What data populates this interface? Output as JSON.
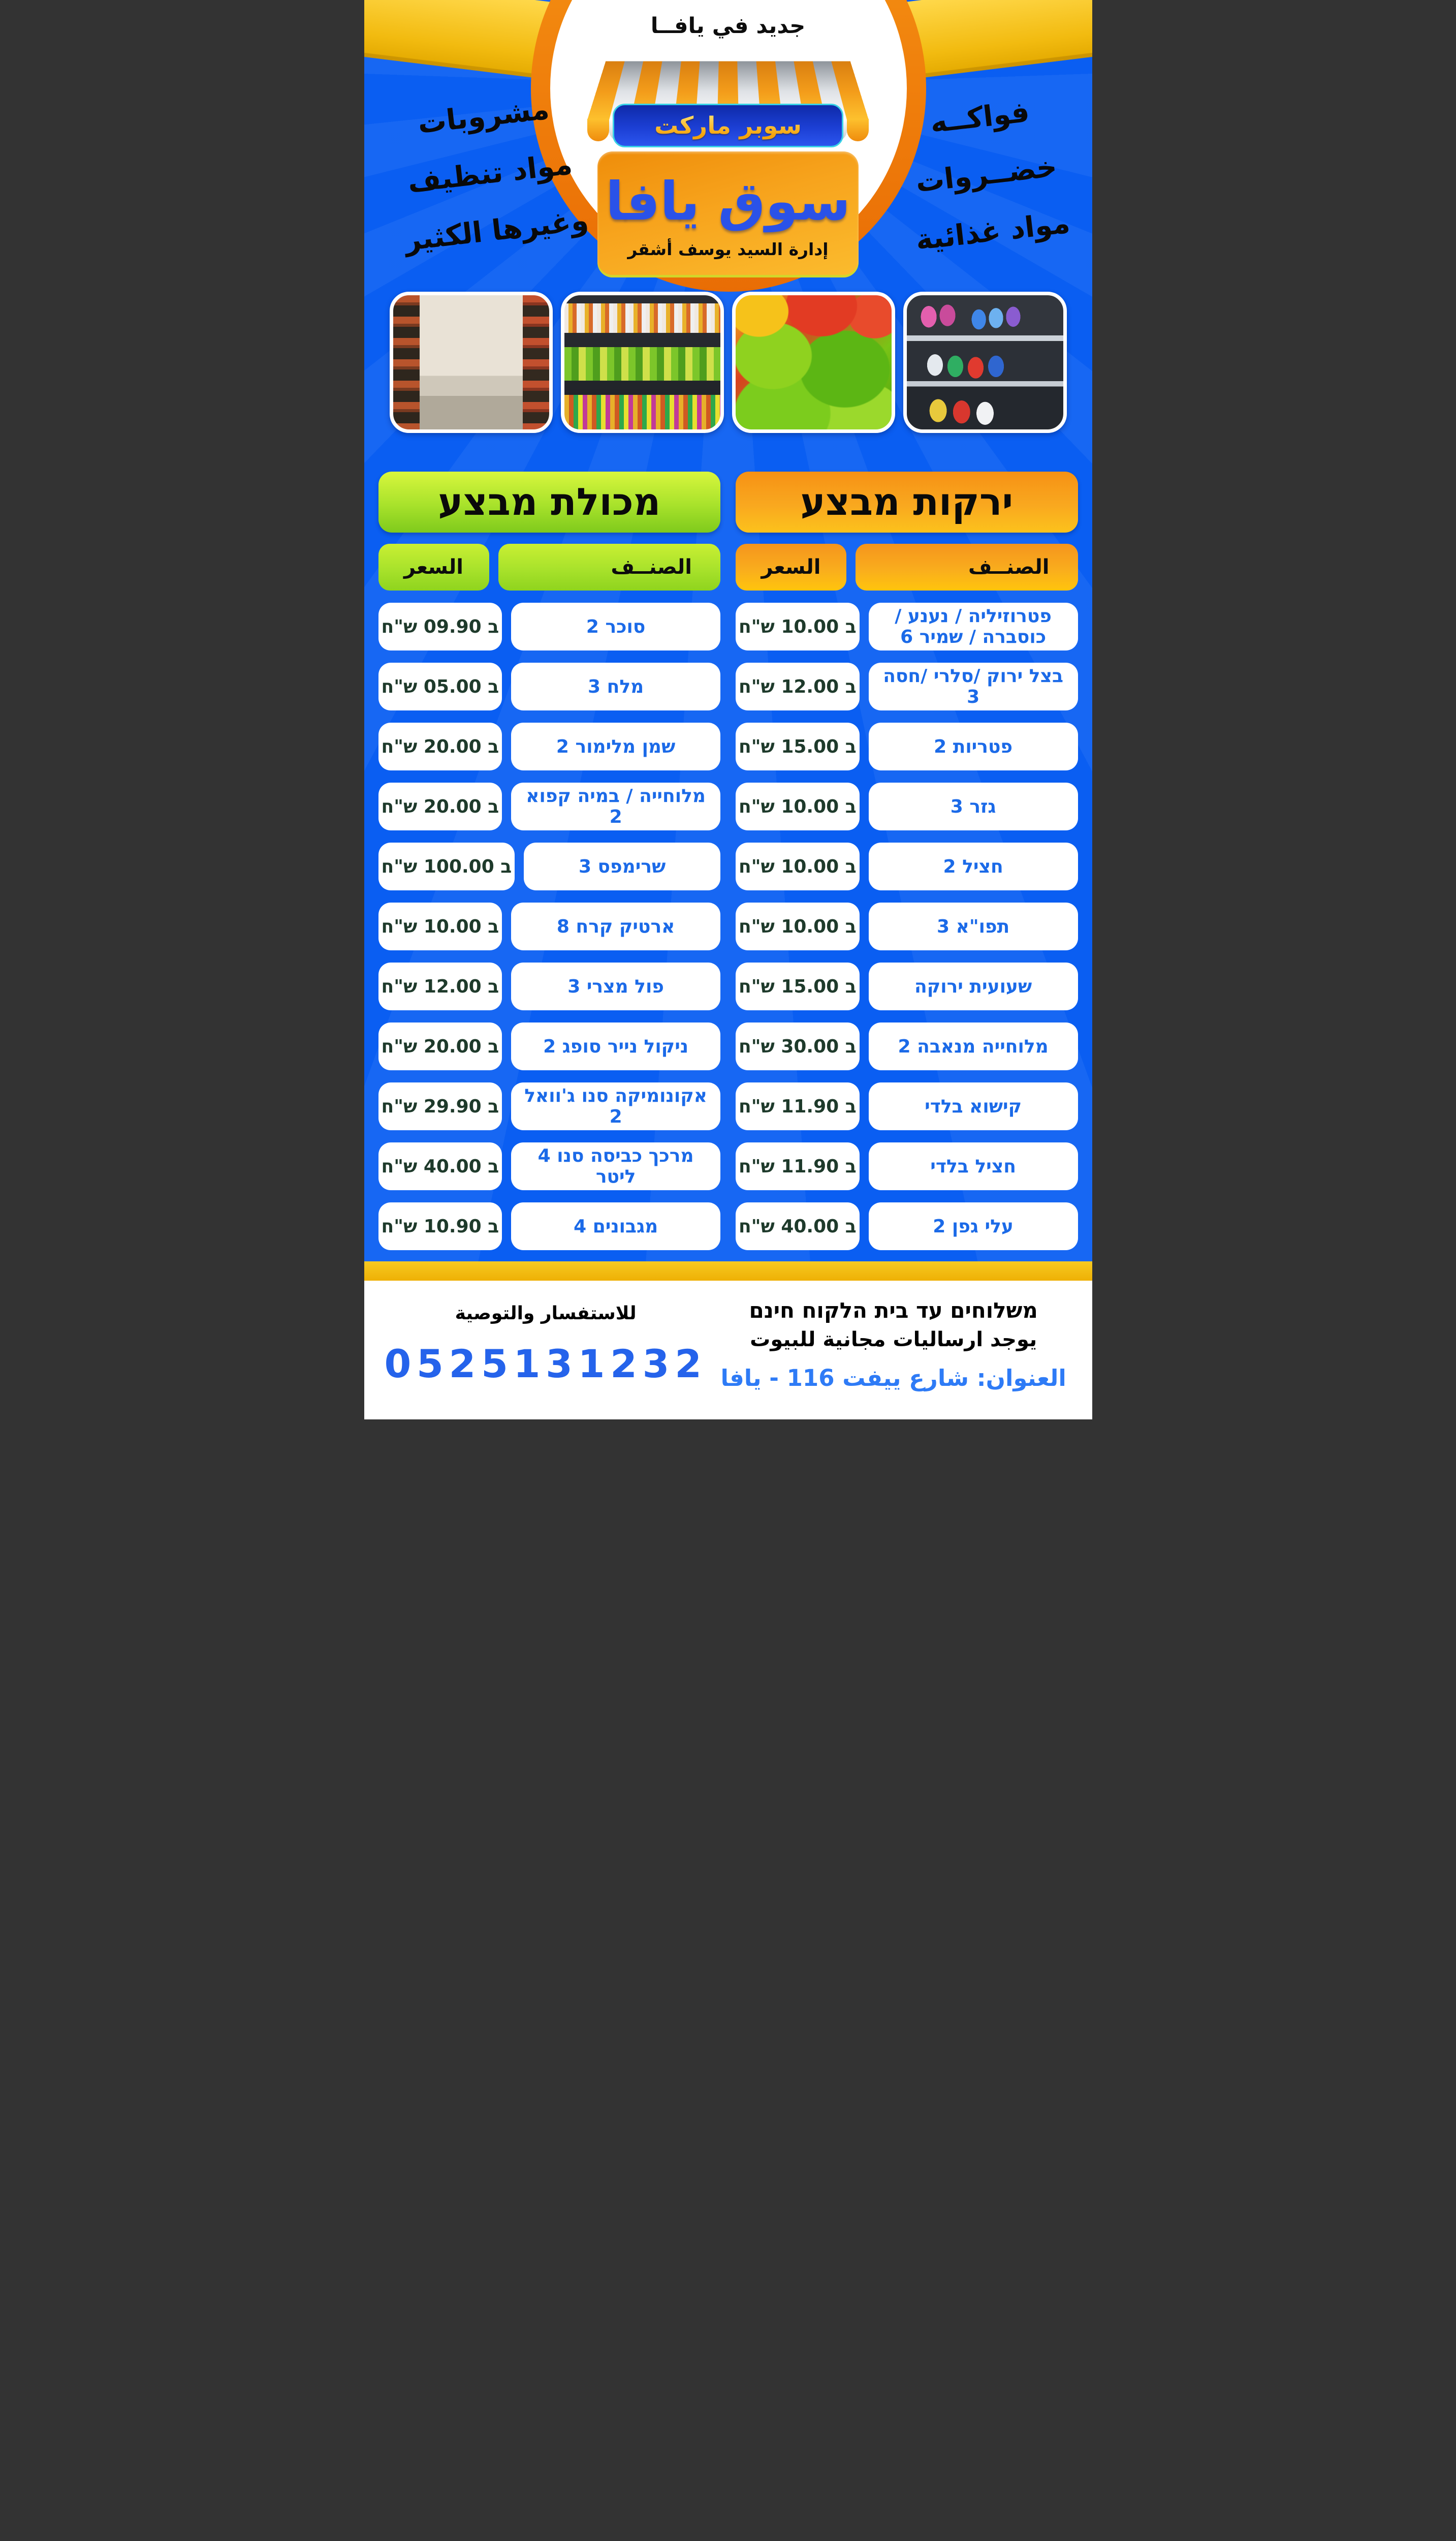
{
  "header": {
    "announcement": "جديد في يافــا",
    "market_type": "سوبر ماركت",
    "store_name": "سوق يافا",
    "management": "إدارة السيد يوسف أشقر",
    "categories_left": [
      "مشروبات",
      "مواد تنظيف",
      "وغيرها الكثير"
    ],
    "categories_right": [
      "فواكــه",
      "خضــروات",
      "مواد غذائية"
    ]
  },
  "photos": [
    {
      "name": "cleaning-products-aisle-photo",
      "css": "photo1"
    },
    {
      "name": "bell-peppers-photo",
      "css": "photo2"
    },
    {
      "name": "snacks-drinks-aisle-photo",
      "css": "photo3"
    },
    {
      "name": "grocery-aisle-photo",
      "css": "photo4"
    }
  ],
  "tables": {
    "vegetables": {
      "title": "ירקות מבצע",
      "item_header": "الصنــف",
      "price_header": "السعر",
      "rows": [
        {
          "item": "פטרוזיליה / נענע / כוסברה / שמיר 6",
          "price": "ב 10.00 ש\"ח"
        },
        {
          "item": "בצל ירוק /סלרי /חסה 3",
          "price": "ב 12.00 ש\"ח"
        },
        {
          "item": "פטריות 2",
          "price": "ב 15.00 ש\"ח"
        },
        {
          "item": "גזר 3",
          "price": "ב 10.00 ש\"ח"
        },
        {
          "item": "חציל 2",
          "price": "ב 10.00 ש\"ח"
        },
        {
          "item": "תפו\"א 3",
          "price": "ב 10.00 ש\"ח"
        },
        {
          "item": "שעועית ירוקה",
          "price": "ב 15.00 ש\"ח"
        },
        {
          "item": "מלוחייה מנאבה 2",
          "price": "ב 30.00 ש\"ח"
        },
        {
          "item": "קישוא בלדי",
          "price": "ב 11.90 ש\"ח"
        },
        {
          "item": "חציל בלדי",
          "price": "ב 11.90 ש\"ח"
        },
        {
          "item": "עלי גפן 2",
          "price": "ב 40.00 ש\"ח"
        }
      ]
    },
    "grocery": {
      "title": "מכולת מבצע",
      "item_header": "الصنــف",
      "price_header": "السعر",
      "rows": [
        {
          "item": "סוכר 2",
          "price": "ב 09.90 ש\"ח"
        },
        {
          "item": "מלח 3",
          "price": "ב 05.00 ש\"ח"
        },
        {
          "item": "שמן מלימור 2",
          "price": "ב 20.00 ש\"ח"
        },
        {
          "item": "מלוחייה / במיה קפוא 2",
          "price": "ב 20.00 ש\"ח"
        },
        {
          "item": "שרימפס 3",
          "price": "ב 100.00 ש\"ח"
        },
        {
          "item": "ארטיק קרח 8",
          "price": "ב 10.00 ש\"ח"
        },
        {
          "item": "פול מצרי 3",
          "price": "ב 12.00 ש\"ח"
        },
        {
          "item": "ניקול נייר סופג 2",
          "price": "ב 20.00 ש\"ח"
        },
        {
          "item": "אקונומיקה סנו ג'וואל 2",
          "price": "ב 29.90 ש\"ח"
        },
        {
          "item": "מרכך כביסה סנו 4 ליטר",
          "price": "ב 40.00 ש\"ח"
        },
        {
          "item": "מגבונים 4",
          "price": "ב 10.90 ש\"ח"
        }
      ]
    }
  },
  "footer": {
    "delivery_line": "משלוחים עד בית הלקוח חינם",
    "free_delivery_line": "يوجد ارساليات مجانية للبيوت",
    "address": "العنوان: شارع ييفت 116 - يافا",
    "inquiry": "للاستفسار والتوصية",
    "phone": "0525131232"
  },
  "colors": {
    "background_blue": "#0a5ef2",
    "ring_orange": "#ef7d0b",
    "ribbon_yellow": "#f2bb10",
    "badge_blue": "#1c3fd4",
    "badge_border_cyan": "#38d2e6",
    "panel_orange": "#f7a41d",
    "store_name_blue": "#2a52e8",
    "header_green": "#a8e22b",
    "header_orange": "#f9a81f",
    "item_text_blue": "#1b6ae8",
    "price_text_green": "#1e3a2b",
    "footer_accent_blue": "#2563eb"
  }
}
